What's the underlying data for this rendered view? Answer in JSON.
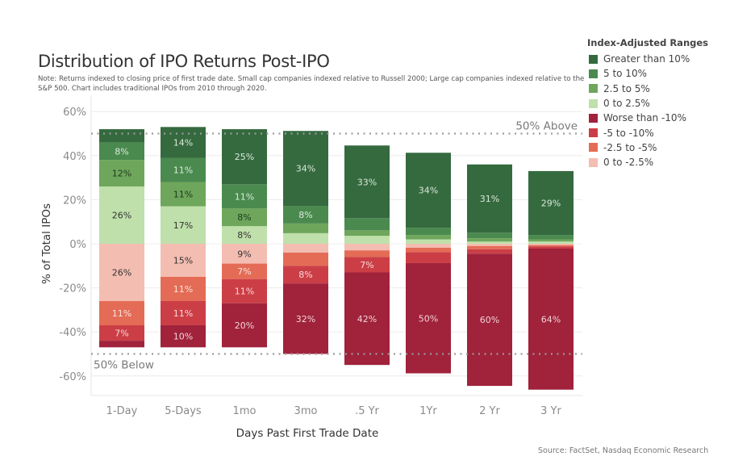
{
  "header": {
    "title": "Distribution of IPO Returns Post-IPO",
    "note": "Note: Returns indexed to closing price of first trade date. Small cap companies indexed relative to Russell 2000; Large cap companies indexed relative to the S&P 500. Chart includes traditional IPOs from 2010 through 2020."
  },
  "footer": {
    "source": "Source: FactSet, Nasdaq Economic Research"
  },
  "chart_data": {
    "type": "bar",
    "stacked": true,
    "diverging": true,
    "title": "Distribution of IPO Returns Post-IPO",
    "xlabel": "Days Past First Trade Date",
    "ylabel": "% of Total IPOs",
    "ylim": [
      -70,
      65
    ],
    "yticks": [
      60,
      40,
      20,
      0,
      -20,
      -40,
      -60
    ],
    "ytick_labels": [
      "60%",
      "40%",
      "20%",
      "0%",
      "-20%",
      "-40%",
      "-60%"
    ],
    "grid": true,
    "categories": [
      "1-Day",
      "5-Days",
      "1mo",
      "3mo",
      ".5 Yr",
      "1Yr",
      "2 Yr",
      "3 Yr"
    ],
    "legend_title": "Index-Adjusted Ranges",
    "legend_position": "top-right",
    "series": [
      {
        "name": "Greater than 10%",
        "color": "#356a3f",
        "label_color": "#d9e8d9",
        "direction": "up",
        "values": [
          6,
          14,
          25,
          34,
          33,
          34,
          31,
          29
        ],
        "labels": [
          "",
          "14%",
          "25%",
          "34%",
          "33%",
          "34%",
          "31%",
          "29%"
        ]
      },
      {
        "name": "5 to 10%",
        "color": "#4b8a4f",
        "label_color": "#dbeadb",
        "direction": "up",
        "values": [
          8,
          11,
          11,
          8,
          5.5,
          3.3,
          2.5,
          2
        ],
        "labels": [
          "8%",
          "11%",
          "11%",
          "8%",
          "",
          "",
          "",
          ""
        ]
      },
      {
        "name": "2.5 to 5%",
        "color": "#6ea65b",
        "label_color": "#1f3a1f",
        "direction": "up",
        "values": [
          12,
          11,
          8,
          4.4,
          2.5,
          2,
          1.5,
          1
        ],
        "labels": [
          "12%",
          "11%",
          "8%",
          "",
          "",
          "",
          "",
          ""
        ]
      },
      {
        "name": "0 to 2.5%",
        "color": "#bfe0ab",
        "label_color": "#333333",
        "direction": "up",
        "values": [
          26,
          17,
          8,
          4.8,
          3.6,
          2,
          1,
          1
        ],
        "labels": [
          "26%",
          "17%",
          "8%",
          "",
          "",
          "",
          "",
          ""
        ]
      },
      {
        "name": "Worse than -10%",
        "color": "#a0223b",
        "label_color": "#f3d3d8",
        "direction": "down",
        "values": [
          3,
          10,
          20,
          32,
          42,
          50,
          60,
          64
        ],
        "labels": [
          "",
          "10%",
          "20%",
          "32%",
          "42%",
          "50%",
          "60%",
          "64%"
        ]
      },
      {
        "name": "-5 to -10%",
        "color": "#cc3e46",
        "label_color": "#f8dada",
        "direction": "down",
        "values": [
          7,
          11,
          11,
          8,
          7,
          5,
          2,
          1
        ],
        "labels": [
          "7%",
          "11%",
          "11%",
          "8%",
          "7%",
          "",
          "",
          ""
        ]
      },
      {
        "name": "-2.5 to -5%",
        "color": "#e46c56",
        "label_color": "#fbe3dc",
        "direction": "down",
        "values": [
          11,
          11,
          7,
          6,
          3,
          2,
          1.5,
          0.6
        ],
        "labels": [
          "11%",
          "11%",
          "7%",
          "",
          "",
          "",
          "",
          ""
        ]
      },
      {
        "name": "0 to -2.5%",
        "color": "#f4bdb2",
        "label_color": "#333333",
        "direction": "down",
        "values": [
          26,
          15,
          9,
          4,
          3,
          1.8,
          1,
          0.6
        ],
        "labels": [
          "26%",
          "15%",
          "9%",
          "",
          "",
          "",
          "",
          ""
        ]
      }
    ],
    "reference_lines": [
      {
        "value": 50,
        "label": "50% Above"
      },
      {
        "value": -50,
        "label": "50% Below"
      }
    ]
  }
}
